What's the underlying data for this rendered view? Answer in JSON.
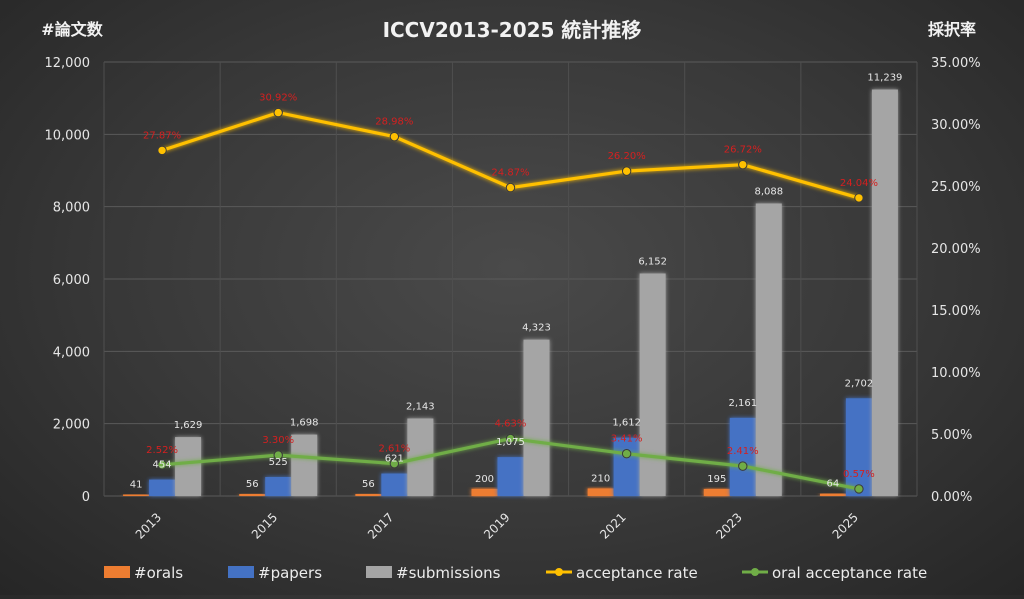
{
  "chart_data": {
    "type": "bar",
    "title": "ICCV2013-2025 統計推移",
    "ylabel": "#論文数",
    "y2label": "採択率",
    "categories": [
      "2013",
      "2015",
      "2017",
      "2019",
      "2021",
      "2023",
      "2025"
    ],
    "ylim": [
      0,
      12000
    ],
    "y2lim": [
      0,
      35
    ],
    "yticks": [
      "0",
      "2,000",
      "4,000",
      "6,000",
      "8,000",
      "10,000",
      "12,000"
    ],
    "y2ticks": [
      "0.00%",
      "5.00%",
      "10.00%",
      "15.00%",
      "20.00%",
      "25.00%",
      "30.00%",
      "35.00%"
    ],
    "grid": true,
    "legend_position": "bottom",
    "series": [
      {
        "name": "#orals",
        "kind": "bar",
        "axis": "left",
        "color": "#ed7d31",
        "values": [
          41,
          56,
          56,
          200,
          210,
          195,
          64
        ],
        "labels": [
          "41",
          "56",
          "56",
          "200",
          "210",
          "195",
          "64"
        ]
      },
      {
        "name": "#papers",
        "kind": "bar",
        "axis": "left",
        "color": "#4472c4",
        "values": [
          454,
          525,
          621,
          1075,
          1612,
          2161,
          2702
        ],
        "labels": [
          "454",
          "525",
          "621",
          "1,075",
          "1,612",
          "2,161",
          "2,702"
        ]
      },
      {
        "name": "#submissions",
        "kind": "bar",
        "axis": "left",
        "color": "#a5a5a5",
        "values": [
          1629,
          1698,
          2143,
          4323,
          6152,
          8088,
          11239
        ],
        "labels": [
          "1,629",
          "1,698",
          "2,143",
          "4,323",
          "6,152",
          "8,088",
          "11,239"
        ]
      },
      {
        "name": "acceptance rate",
        "kind": "line",
        "axis": "right",
        "color": "#ffc000",
        "values": [
          27.87,
          30.92,
          28.98,
          24.87,
          26.2,
          26.72,
          24.04
        ],
        "labels": [
          "27.87%",
          "30.92%",
          "28.98%",
          "24.87%",
          "26.20%",
          "26.72%",
          "24.04%"
        ]
      },
      {
        "name": "oral acceptance rate",
        "kind": "line",
        "axis": "right",
        "color": "#70ad47",
        "values": [
          2.52,
          3.3,
          2.61,
          4.63,
          3.41,
          2.41,
          0.57
        ],
        "labels": [
          "2.52%",
          "3.30%",
          "2.61%",
          "4.63%",
          "3.41%",
          "2.41%",
          "0.57%"
        ]
      }
    ]
  }
}
